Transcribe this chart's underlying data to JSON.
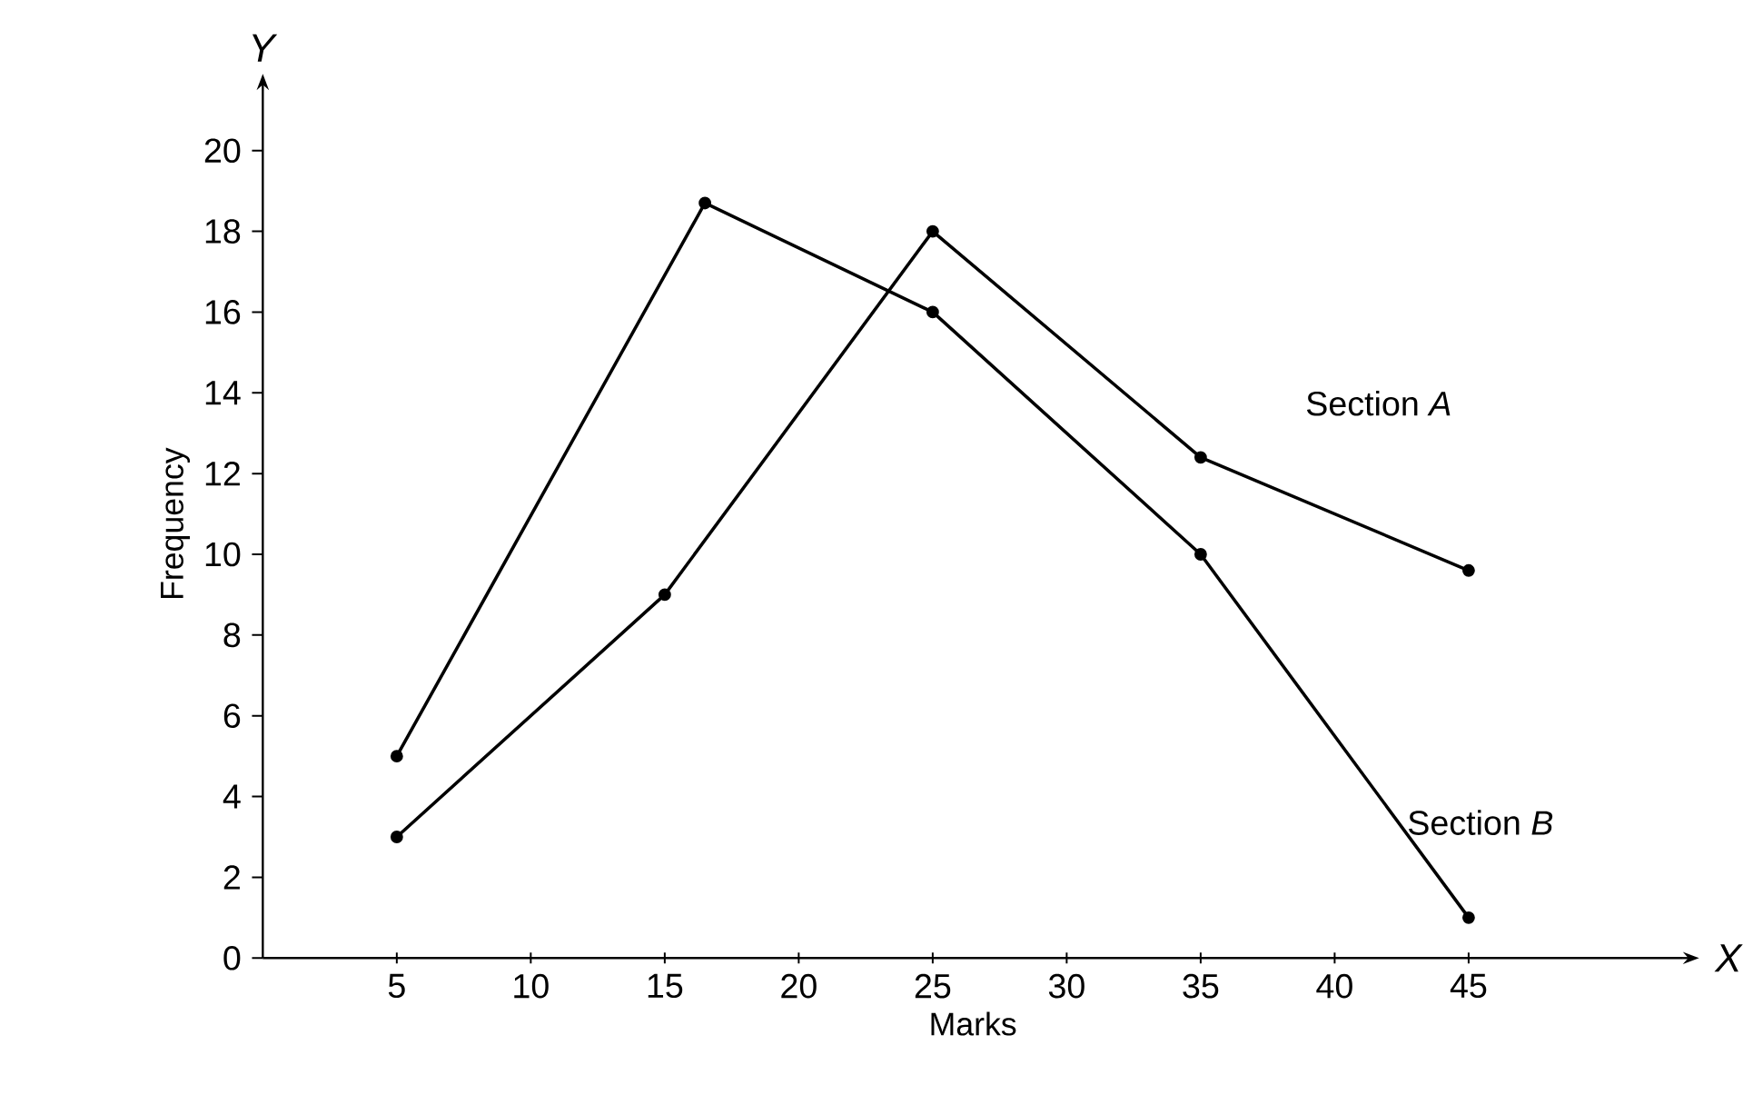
{
  "chart_data": {
    "type": "line",
    "xlabel": "Marks",
    "ylabel": "Frequency",
    "x": [
      5,
      15,
      25,
      35,
      45
    ],
    "series": [
      {
        "name": "Section *A*",
        "color": "#000000",
        "values": [
          3,
          9,
          18,
          12.4,
          9.6
        ]
      },
      {
        "name": "Section *B*",
        "color": "#000000",
        "x": [
          5,
          16.5,
          25,
          35,
          45
        ],
        "values": [
          5,
          18.7,
          16,
          10,
          1
        ]
      }
    ],
    "xlim": [
      0,
      53
    ],
    "ylim": [
      0,
      21.5
    ],
    "xticks": [
      5,
      10,
      15,
      20,
      25,
      30,
      35,
      40,
      45
    ],
    "yticks": [
      0,
      2,
      4,
      6,
      8,
      10,
      12,
      14,
      16,
      18,
      20
    ],
    "marker": "circle",
    "annotations": [
      "*Y*",
      "*X*"
    ]
  }
}
